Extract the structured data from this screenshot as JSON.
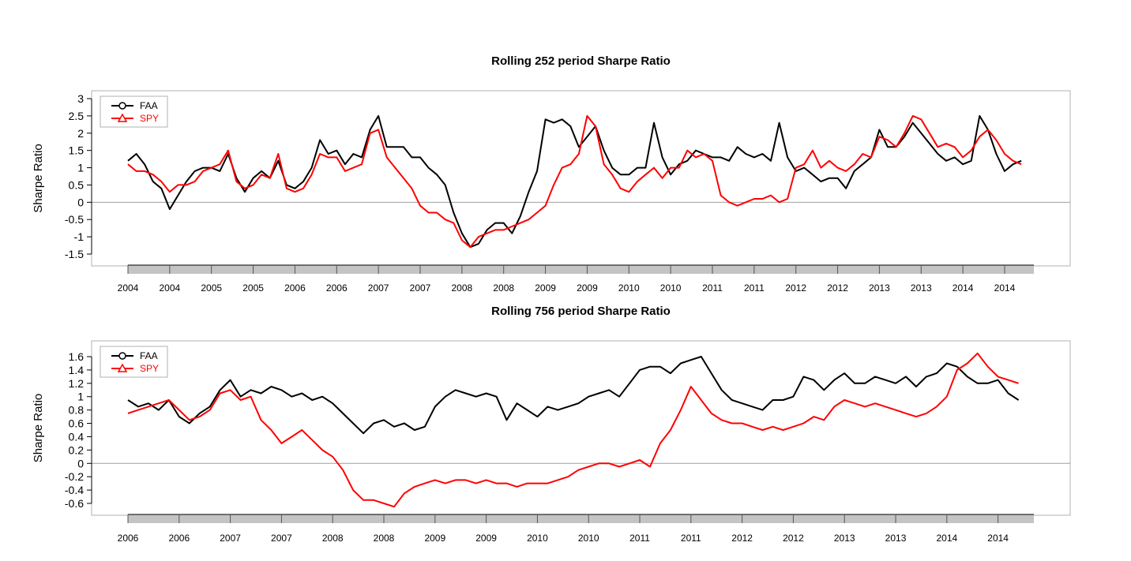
{
  "chart_data": [
    {
      "type": "line",
      "title": "Rolling 252 period Sharpe Ratio",
      "ylabel": "Sharpe Ratio",
      "xlabel": "",
      "ylim": [
        -1.75,
        3.2
      ],
      "yticks": [
        "-1.5",
        "-1",
        "-0.5",
        "0",
        "0.5",
        "1",
        "1.5",
        "2",
        "2.5",
        "3"
      ],
      "ytick_values": [
        -1.5,
        -1,
        -0.5,
        0,
        0.5,
        1,
        1.5,
        2,
        2.5,
        3
      ],
      "xlim": [
        2004.0,
        2014.85
      ],
      "xtick_labels": [
        "2004",
        "2004",
        "2005",
        "2005",
        "2006",
        "2006",
        "2007",
        "2007",
        "2008",
        "2008",
        "2009",
        "2009",
        "2010",
        "2010",
        "2011",
        "2011",
        "2012",
        "2012",
        "2013",
        "2013",
        "2014",
        "2014"
      ],
      "xtick_positions": [
        2004.0,
        2004.5,
        2005.0,
        2005.5,
        2006.0,
        2006.5,
        2007.0,
        2007.5,
        2008.0,
        2008.5,
        2009.0,
        2009.5,
        2010.0,
        2010.5,
        2011.0,
        2011.5,
        2012.0,
        2012.5,
        2013.0,
        2013.5,
        2014.0,
        2014.5
      ],
      "legend": "top-left",
      "zero_line": true,
      "series": [
        {
          "name": "FAA",
          "color": "#000000",
          "marker": "circle",
          "x": [
            2004.0,
            2004.1,
            2004.2,
            2004.3,
            2004.4,
            2004.5,
            2004.6,
            2004.7,
            2004.8,
            2004.9,
            2005.0,
            2005.1,
            2005.2,
            2005.3,
            2005.4,
            2005.5,
            2005.6,
            2005.7,
            2005.8,
            2005.9,
            2006.0,
            2006.1,
            2006.2,
            2006.3,
            2006.4,
            2006.5,
            2006.6,
            2006.7,
            2006.8,
            2006.9,
            2007.0,
            2007.1,
            2007.2,
            2007.3,
            2007.4,
            2007.5,
            2007.6,
            2007.7,
            2007.8,
            2007.9,
            2008.0,
            2008.1,
            2008.2,
            2008.3,
            2008.4,
            2008.5,
            2008.6,
            2008.7,
            2008.8,
            2008.9,
            2009.0,
            2009.1,
            2009.2,
            2009.3,
            2009.4,
            2009.5,
            2009.6,
            2009.7,
            2009.8,
            2009.9,
            2010.0,
            2010.1,
            2010.2,
            2010.3,
            2010.4,
            2010.5,
            2010.6,
            2010.7,
            2010.8,
            2010.9,
            2011.0,
            2011.1,
            2011.2,
            2011.3,
            2011.4,
            2011.5,
            2011.6,
            2011.7,
            2011.8,
            2011.9,
            2012.0,
            2012.1,
            2012.2,
            2012.3,
            2012.4,
            2012.5,
            2012.6,
            2012.7,
            2012.8,
            2012.9,
            2013.0,
            2013.1,
            2013.2,
            2013.3,
            2013.4,
            2013.5,
            2013.6,
            2013.7,
            2013.8,
            2013.9,
            2014.0,
            2014.1,
            2014.2,
            2014.3,
            2014.4,
            2014.5,
            2014.6,
            2014.7
          ],
          "y": [
            1.2,
            1.4,
            1.1,
            0.6,
            0.4,
            -0.2,
            0.2,
            0.6,
            0.9,
            1.0,
            1.0,
            0.9,
            1.4,
            0.7,
            0.3,
            0.7,
            0.9,
            0.7,
            1.2,
            0.5,
            0.4,
            0.6,
            1.0,
            1.8,
            1.4,
            1.5,
            1.1,
            1.4,
            1.3,
            2.1,
            2.5,
            1.6,
            1.6,
            1.6,
            1.3,
            1.3,
            1.0,
            0.8,
            0.5,
            -0.3,
            -0.9,
            -1.3,
            -1.2,
            -0.8,
            -0.6,
            -0.6,
            -0.9,
            -0.4,
            0.3,
            0.9,
            2.4,
            2.3,
            2.4,
            2.2,
            1.6,
            1.9,
            2.2,
            1.5,
            1.0,
            0.8,
            0.8,
            1.0,
            1.0,
            2.3,
            1.3,
            0.8,
            1.1,
            1.2,
            1.5,
            1.4,
            1.3,
            1.3,
            1.2,
            1.6,
            1.4,
            1.3,
            1.4,
            1.2,
            2.3,
            1.3,
            0.9,
            1.0,
            0.8,
            0.6,
            0.7,
            0.7,
            0.4,
            0.9,
            1.1,
            1.3,
            2.1,
            1.6,
            1.6,
            1.9,
            2.3,
            2.0,
            1.7,
            1.4,
            1.2,
            1.3,
            1.1,
            1.2,
            2.5,
            2.1,
            1.4,
            0.9,
            1.1,
            1.2
          ]
        },
        {
          "name": "SPY",
          "color": "#ff0000",
          "marker": "triangle",
          "x": [
            2004.0,
            2004.1,
            2004.2,
            2004.3,
            2004.4,
            2004.5,
            2004.6,
            2004.7,
            2004.8,
            2004.9,
            2005.0,
            2005.1,
            2005.2,
            2005.3,
            2005.4,
            2005.5,
            2005.6,
            2005.7,
            2005.8,
            2005.9,
            2006.0,
            2006.1,
            2006.2,
            2006.3,
            2006.4,
            2006.5,
            2006.6,
            2006.7,
            2006.8,
            2006.9,
            2007.0,
            2007.1,
            2007.2,
            2007.3,
            2007.4,
            2007.5,
            2007.6,
            2007.7,
            2007.8,
            2007.9,
            2008.0,
            2008.1,
            2008.2,
            2008.3,
            2008.4,
            2008.5,
            2008.6,
            2008.7,
            2008.8,
            2008.9,
            2009.0,
            2009.1,
            2009.2,
            2009.3,
            2009.4,
            2009.5,
            2009.6,
            2009.7,
            2009.8,
            2009.9,
            2010.0,
            2010.1,
            2010.2,
            2010.3,
            2010.4,
            2010.5,
            2010.6,
            2010.7,
            2010.8,
            2010.9,
            2011.0,
            2011.1,
            2011.2,
            2011.3,
            2011.4,
            2011.5,
            2011.6,
            2011.7,
            2011.8,
            2011.9,
            2012.0,
            2012.1,
            2012.2,
            2012.3,
            2012.4,
            2012.5,
            2012.6,
            2012.7,
            2012.8,
            2012.9,
            2013.0,
            2013.1,
            2013.2,
            2013.3,
            2013.4,
            2013.5,
            2013.6,
            2013.7,
            2013.8,
            2013.9,
            2014.0,
            2014.1,
            2014.2,
            2014.3,
            2014.4,
            2014.5,
            2014.6,
            2014.7
          ],
          "y": [
            1.1,
            0.9,
            0.9,
            0.8,
            0.6,
            0.3,
            0.5,
            0.5,
            0.6,
            0.9,
            1.0,
            1.1,
            1.5,
            0.6,
            0.4,
            0.5,
            0.8,
            0.7,
            1.4,
            0.4,
            0.3,
            0.4,
            0.8,
            1.4,
            1.3,
            1.3,
            0.9,
            1.0,
            1.1,
            2.0,
            2.1,
            1.3,
            1.0,
            0.7,
            0.4,
            -0.1,
            -0.3,
            -0.3,
            -0.5,
            -0.6,
            -1.1,
            -1.3,
            -1.0,
            -0.9,
            -0.8,
            -0.8,
            -0.7,
            -0.6,
            -0.5,
            -0.3,
            -0.1,
            0.5,
            1.0,
            1.1,
            1.4,
            2.5,
            2.2,
            1.1,
            0.8,
            0.4,
            0.3,
            0.6,
            0.8,
            1.0,
            0.7,
            1.0,
            1.0,
            1.5,
            1.3,
            1.4,
            1.2,
            0.2,
            0.0,
            -0.1,
            0.0,
            0.1,
            0.1,
            0.2,
            0.0,
            0.1,
            1.0,
            1.1,
            1.5,
            1.0,
            1.2,
            1.0,
            0.9,
            1.1,
            1.4,
            1.3,
            1.9,
            1.8,
            1.6,
            2.0,
            2.5,
            2.4,
            2.0,
            1.6,
            1.7,
            1.6,
            1.3,
            1.5,
            1.9,
            2.1,
            1.8,
            1.4,
            1.2,
            1.1
          ]
        }
      ]
    },
    {
      "type": "line",
      "title": "Rolling 756 period Sharpe Ratio",
      "ylabel": "Sharpe Ratio",
      "xlabel": "",
      "ylim": [
        -0.7,
        1.75
      ],
      "yticks": [
        "-0.6",
        "-0.4",
        "-0.2",
        "0",
        "0.2",
        "0.4",
        "0.6",
        "0.8",
        "1",
        "1.2",
        "1.4",
        "1.6"
      ],
      "ytick_values": [
        -0.6,
        -0.4,
        -0.2,
        0,
        0.2,
        0.4,
        0.6,
        0.8,
        1,
        1.2,
        1.4,
        1.6
      ],
      "xlim": [
        2006.0,
        2014.85
      ],
      "xtick_labels": [
        "2006",
        "2006",
        "2007",
        "2007",
        "2008",
        "2008",
        "2009",
        "2009",
        "2010",
        "2010",
        "2011",
        "2011",
        "2012",
        "2012",
        "2013",
        "2013",
        "2014",
        "2014"
      ],
      "xtick_positions": [
        2006.0,
        2006.5,
        2007.0,
        2007.5,
        2008.0,
        2008.5,
        2009.0,
        2009.5,
        2010.0,
        2010.5,
        2011.0,
        2011.5,
        2012.0,
        2012.5,
        2013.0,
        2013.5,
        2014.0,
        2014.5
      ],
      "legend": "top-left",
      "zero_line": true,
      "series": [
        {
          "name": "FAA",
          "color": "#000000",
          "marker": "circle",
          "x": [
            2006.0,
            2006.1,
            2006.2,
            2006.3,
            2006.4,
            2006.5,
            2006.6,
            2006.7,
            2006.8,
            2006.9,
            2007.0,
            2007.1,
            2007.2,
            2007.3,
            2007.4,
            2007.5,
            2007.6,
            2007.7,
            2007.8,
            2007.9,
            2008.0,
            2008.1,
            2008.2,
            2008.3,
            2008.4,
            2008.5,
            2008.6,
            2008.7,
            2008.8,
            2008.9,
            2009.0,
            2009.1,
            2009.2,
            2009.3,
            2009.4,
            2009.5,
            2009.6,
            2009.7,
            2009.8,
            2009.9,
            2010.0,
            2010.1,
            2010.2,
            2010.3,
            2010.4,
            2010.5,
            2010.6,
            2010.7,
            2010.8,
            2010.9,
            2011.0,
            2011.1,
            2011.2,
            2011.3,
            2011.4,
            2011.5,
            2011.6,
            2011.7,
            2011.8,
            2011.9,
            2012.0,
            2012.1,
            2012.2,
            2012.3,
            2012.4,
            2012.5,
            2012.6,
            2012.7,
            2012.8,
            2012.9,
            2013.0,
            2013.1,
            2013.2,
            2013.3,
            2013.4,
            2013.5,
            2013.6,
            2013.7,
            2013.8,
            2013.9,
            2014.0,
            2014.1,
            2014.2,
            2014.3,
            2014.4,
            2014.5,
            2014.6,
            2014.7
          ],
          "y": [
            0.95,
            0.85,
            0.9,
            0.8,
            0.95,
            0.7,
            0.6,
            0.75,
            0.85,
            1.1,
            1.25,
            1.0,
            1.1,
            1.05,
            1.15,
            1.1,
            1.0,
            1.05,
            0.95,
            1.0,
            0.9,
            0.75,
            0.6,
            0.45,
            0.6,
            0.65,
            0.55,
            0.6,
            0.5,
            0.55,
            0.85,
            1.0,
            1.1,
            1.05,
            1.0,
            1.05,
            1.0,
            0.65,
            0.9,
            0.8,
            0.7,
            0.85,
            0.8,
            0.85,
            0.9,
            1.0,
            1.05,
            1.1,
            1.0,
            1.2,
            1.4,
            1.45,
            1.45,
            1.35,
            1.5,
            1.55,
            1.6,
            1.35,
            1.1,
            0.95,
            0.9,
            0.85,
            0.8,
            0.95,
            0.95,
            1.0,
            1.3,
            1.25,
            1.1,
            1.25,
            1.35,
            1.2,
            1.2,
            1.3,
            1.25,
            1.2,
            1.3,
            1.15,
            1.3,
            1.35,
            1.5,
            1.45,
            1.3,
            1.2,
            1.2,
            1.25,
            1.05,
            0.95
          ]
        },
        {
          "name": "SPY",
          "color": "#ff0000",
          "marker": "triangle",
          "x": [
            2006.0,
            2006.1,
            2006.2,
            2006.3,
            2006.4,
            2006.5,
            2006.6,
            2006.7,
            2006.8,
            2006.9,
            2007.0,
            2007.1,
            2007.2,
            2007.3,
            2007.4,
            2007.5,
            2007.6,
            2007.7,
            2007.8,
            2007.9,
            2008.0,
            2008.1,
            2008.2,
            2008.3,
            2008.4,
            2008.5,
            2008.6,
            2008.7,
            2008.8,
            2008.9,
            2009.0,
            2009.1,
            2009.2,
            2009.3,
            2009.4,
            2009.5,
            2009.6,
            2009.7,
            2009.8,
            2009.9,
            2010.0,
            2010.1,
            2010.2,
            2010.3,
            2010.4,
            2010.5,
            2010.6,
            2010.7,
            2010.8,
            2010.9,
            2011.0,
            2011.1,
            2011.2,
            2011.3,
            2011.4,
            2011.5,
            2011.6,
            2011.7,
            2011.8,
            2011.9,
            2012.0,
            2012.1,
            2012.2,
            2012.3,
            2012.4,
            2012.5,
            2012.6,
            2012.7,
            2012.8,
            2012.9,
            2013.0,
            2013.1,
            2013.2,
            2013.3,
            2013.4,
            2013.5,
            2013.6,
            2013.7,
            2013.8,
            2013.9,
            2014.0,
            2014.1,
            2014.2,
            2014.3,
            2014.4,
            2014.5,
            2014.6,
            2014.7
          ],
          "y": [
            0.75,
            0.8,
            0.85,
            0.9,
            0.95,
            0.8,
            0.65,
            0.7,
            0.8,
            1.05,
            1.1,
            0.95,
            1.0,
            0.65,
            0.5,
            0.3,
            0.4,
            0.5,
            0.35,
            0.2,
            0.1,
            -0.1,
            -0.4,
            -0.55,
            -0.55,
            -0.6,
            -0.65,
            -0.45,
            -0.35,
            -0.3,
            -0.25,
            -0.3,
            -0.25,
            -0.25,
            -0.3,
            -0.25,
            -0.3,
            -0.3,
            -0.35,
            -0.3,
            -0.3,
            -0.3,
            -0.25,
            -0.2,
            -0.1,
            -0.05,
            0.0,
            0.0,
            -0.05,
            0.0,
            0.05,
            -0.05,
            0.3,
            0.5,
            0.8,
            1.15,
            0.95,
            0.75,
            0.65,
            0.6,
            0.6,
            0.55,
            0.5,
            0.55,
            0.5,
            0.55,
            0.6,
            0.7,
            0.65,
            0.85,
            0.95,
            0.9,
            0.85,
            0.9,
            0.85,
            0.8,
            0.75,
            0.7,
            0.75,
            0.85,
            1.0,
            1.4,
            1.5,
            1.65,
            1.45,
            1.3,
            1.25,
            1.2
          ]
        }
      ]
    }
  ]
}
